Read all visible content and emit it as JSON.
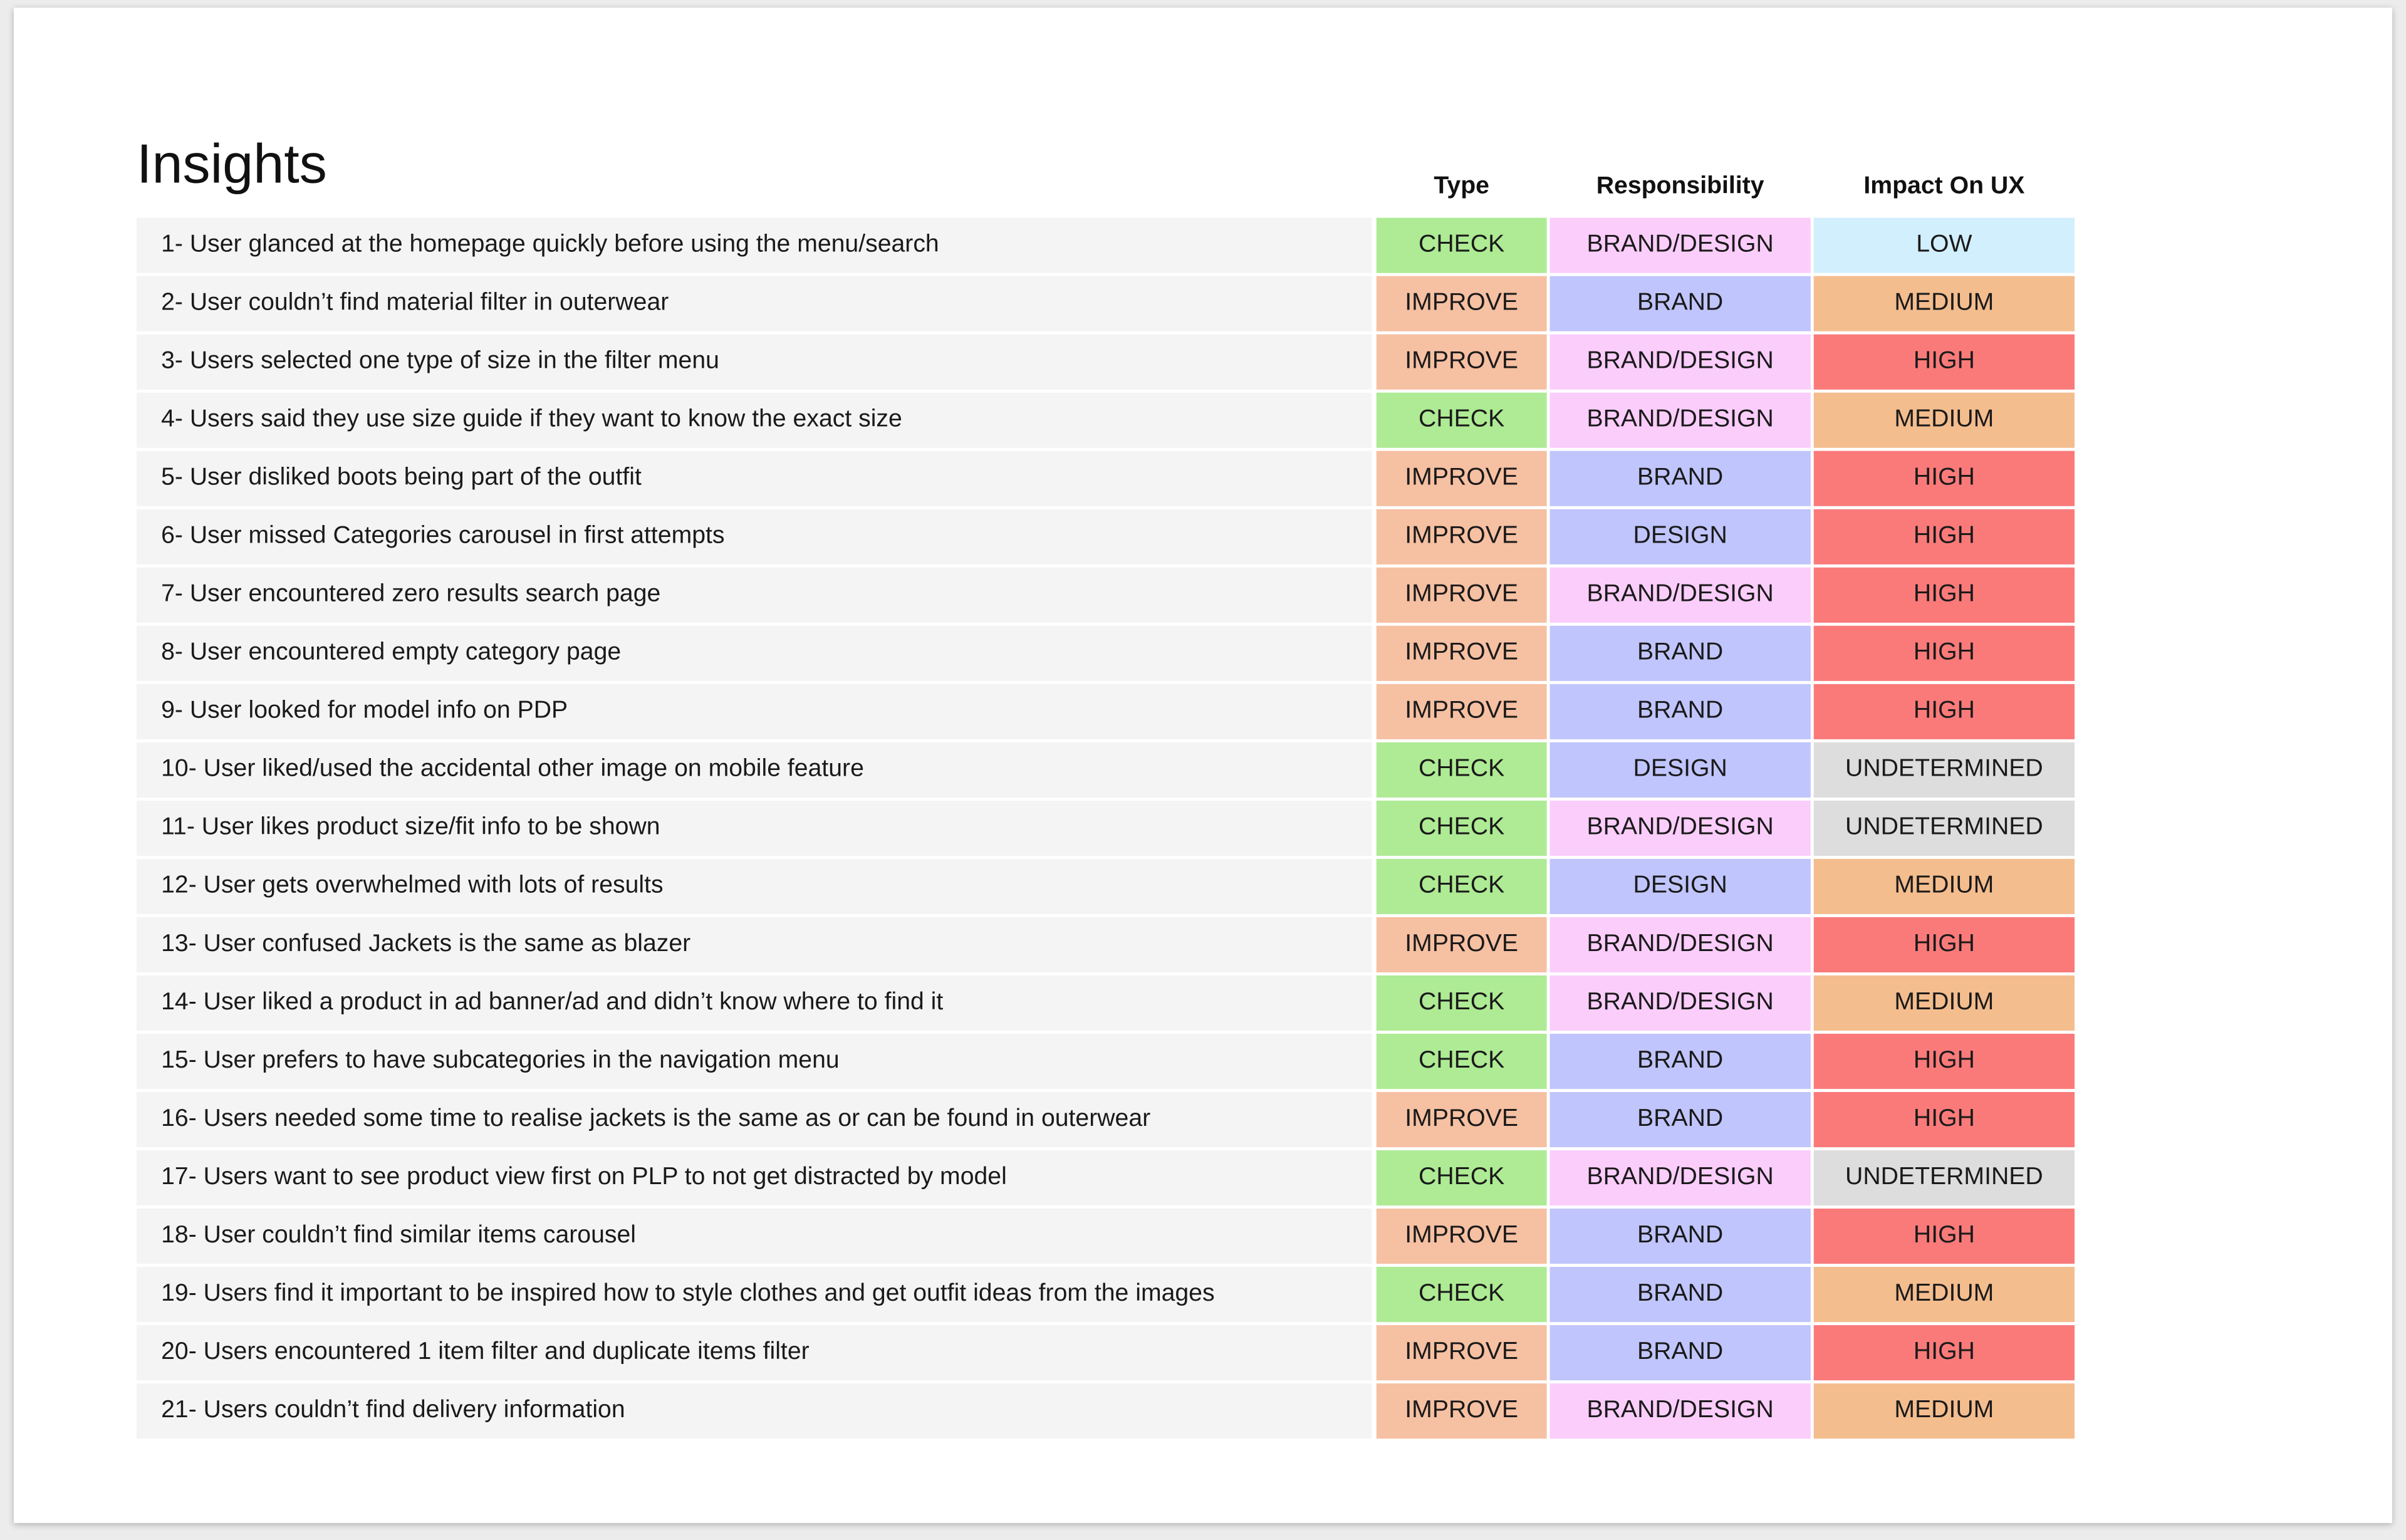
{
  "title": "Insights",
  "columns": {
    "type": "Type",
    "responsibility": "Responsibility",
    "impact": "Impact On UX"
  },
  "colors": {
    "CHECK": "#aeeb94",
    "IMPROVE": "#f6c0a2",
    "BRAND/DESIGN": "#fbcdfb",
    "BRAND": "#c0c5fd",
    "DESIGN": "#c0c5fd",
    "LOW": "#d2effd",
    "MEDIUM": "#f4bd8e",
    "HIGH": "#fa7a7a",
    "UNDETERMINED": "#dddddd"
  },
  "rows": [
    {
      "label": "1- User glanced at the homepage quickly before using the menu/search",
      "type": "CHECK",
      "responsibility": "BRAND/DESIGN",
      "impact": "LOW"
    },
    {
      "label": "2- User couldn’t find material filter in outerwear",
      "type": "IMPROVE",
      "responsibility": "BRAND",
      "impact": "MEDIUM"
    },
    {
      "label": "3- Users selected one type of size in the filter menu",
      "type": "IMPROVE",
      "responsibility": "BRAND/DESIGN",
      "impact": "HIGH"
    },
    {
      "label": "4- Users said they use size guide if they want to know the exact size",
      "type": "CHECK",
      "responsibility": "BRAND/DESIGN",
      "impact": "MEDIUM"
    },
    {
      "label": "5- User disliked boots being part of the outfit",
      "type": "IMPROVE",
      "responsibility": "BRAND",
      "impact": "HIGH"
    },
    {
      "label": "6- User missed Categories carousel in first attempts",
      "type": "IMPROVE",
      "responsibility": "DESIGN",
      "impact": "HIGH"
    },
    {
      "label": "7- User encountered zero results search page",
      "type": "IMPROVE",
      "responsibility": "BRAND/DESIGN",
      "impact": "HIGH"
    },
    {
      "label": "8- User encountered empty category page",
      "type": "IMPROVE",
      "responsibility": "BRAND",
      "impact": "HIGH"
    },
    {
      "label": "9- User looked for model info on PDP",
      "type": "IMPROVE",
      "responsibility": "BRAND",
      "impact": "HIGH"
    },
    {
      "label": "10- User liked/used the accidental other image on mobile feature",
      "type": "CHECK",
      "responsibility": "DESIGN",
      "impact": "UNDETERMINED"
    },
    {
      "label": "11- User likes product size/fit info to be shown",
      "type": "CHECK",
      "responsibility": "BRAND/DESIGN",
      "impact": "UNDETERMINED"
    },
    {
      "label": "12- User gets overwhelmed with lots of results",
      "type": "CHECK",
      "responsibility": "DESIGN",
      "impact": "MEDIUM"
    },
    {
      "label": "13- User confused Jackets is the same as blazer",
      "type": "IMPROVE",
      "responsibility": "BRAND/DESIGN",
      "impact": "HIGH"
    },
    {
      "label": "14- User liked a product in ad banner/ad and didn’t know where to find it",
      "type": "CHECK",
      "responsibility": "BRAND/DESIGN",
      "impact": "MEDIUM"
    },
    {
      "label": "15- User prefers to have subcategories in the navigation menu",
      "type": "CHECK",
      "responsibility": "BRAND",
      "impact": "HIGH"
    },
    {
      "label": "16- Users needed some time to realise jackets is the same as or can be found in outerwear",
      "type": "IMPROVE",
      "responsibility": "BRAND",
      "impact": "HIGH"
    },
    {
      "label": "17- Users want to see product view first on PLP to not get distracted by model",
      "type": "CHECK",
      "responsibility": "BRAND/DESIGN",
      "impact": "UNDETERMINED"
    },
    {
      "label": "18- User couldn’t find similar items carousel",
      "type": "IMPROVE",
      "responsibility": "BRAND",
      "impact": "HIGH"
    },
    {
      "label": "19- Users find it important to be inspired how to style clothes and get outfit ideas from the images",
      "type": "CHECK",
      "responsibility": "BRAND",
      "impact": "MEDIUM"
    },
    {
      "label": "20- Users encountered 1 item filter and duplicate items filter",
      "type": "IMPROVE",
      "responsibility": "BRAND",
      "impact": "HIGH"
    },
    {
      "label": "21- Users couldn’t find delivery information",
      "type": "IMPROVE",
      "responsibility": "BRAND/DESIGN",
      "impact": "MEDIUM"
    }
  ]
}
